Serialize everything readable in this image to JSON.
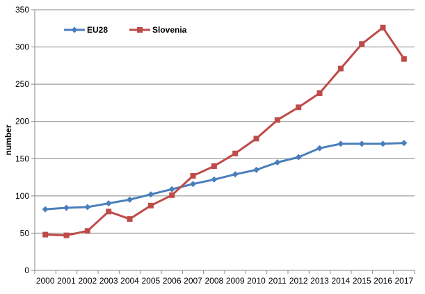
{
  "chart_data": {
    "type": "line",
    "title": "",
    "xlabel": "",
    "ylabel": "number",
    "ylim": [
      0,
      350
    ],
    "yticks": [
      0,
      50,
      100,
      150,
      200,
      250,
      300,
      350
    ],
    "grid": "horizontal",
    "legend_position": "top-left",
    "categories": [
      "2000",
      "2001",
      "2002",
      "2003",
      "2004",
      "2005",
      "2006",
      "2007",
      "2008",
      "2009",
      "2010",
      "2011",
      "2012",
      "2013",
      "2014",
      "2015",
      "2016",
      "2017"
    ],
    "series": [
      {
        "name": "EU28",
        "color": "#4a7ebb",
        "marker": "diamond",
        "values": [
          82,
          84,
          85,
          90,
          95,
          102,
          109,
          116,
          122,
          129,
          135,
          145,
          152,
          164,
          170,
          170,
          170,
          171
        ]
      },
      {
        "name": "Slovenia",
        "color": "#be4b48",
        "marker": "square",
        "values": [
          48,
          47,
          53,
          79,
          69,
          87,
          101,
          127,
          140,
          157,
          177,
          202,
          219,
          238,
          271,
          304,
          326,
          284
        ]
      }
    ]
  }
}
